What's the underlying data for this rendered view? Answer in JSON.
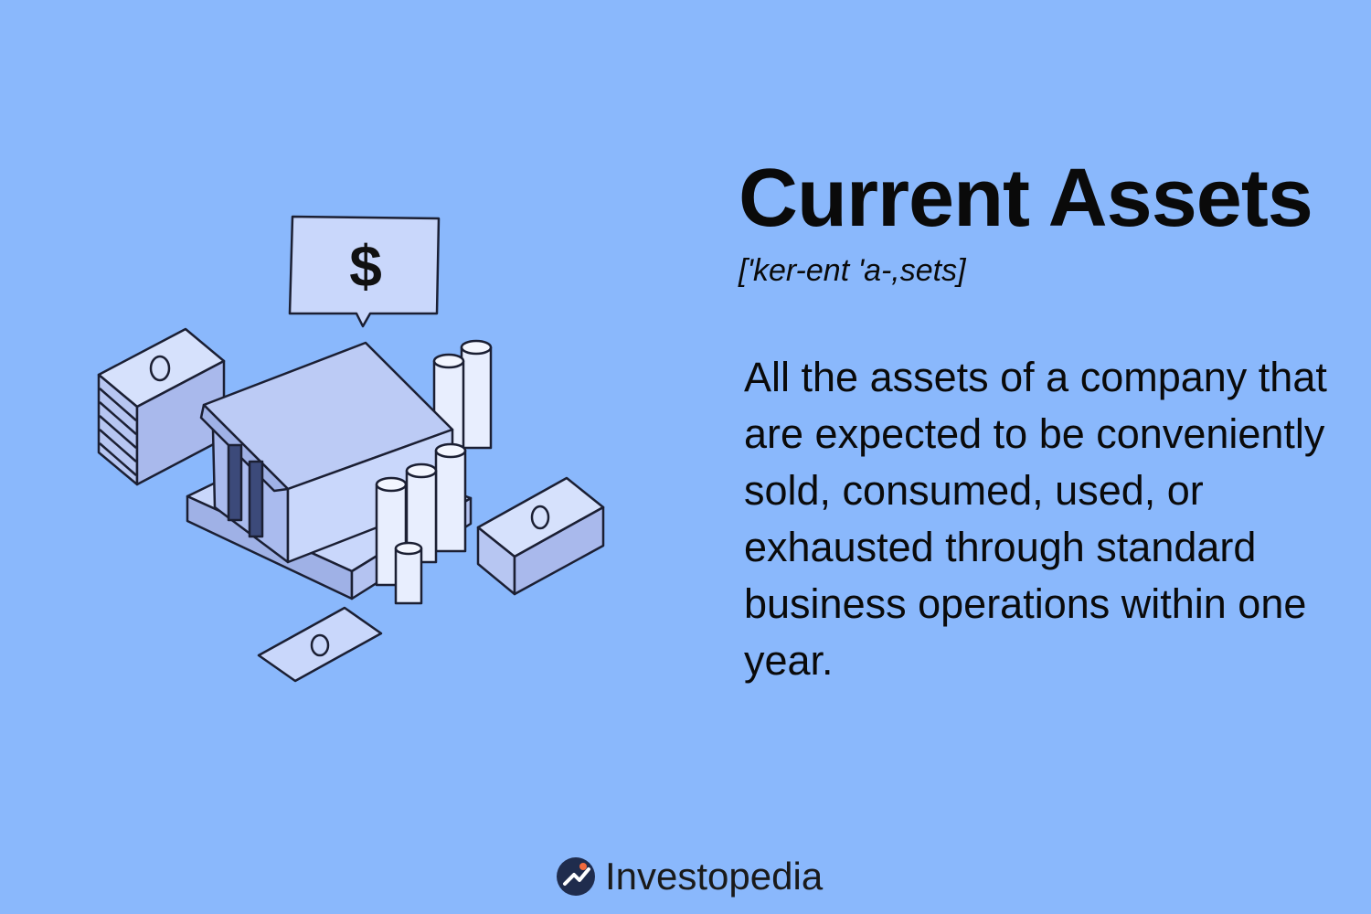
{
  "term": {
    "title": "Current Assets",
    "pronunciation": "['ker-ent 'a-,sets]"
  },
  "definition": {
    "text": "All the assets of a company that are expected to be conveniently sold, consumed, used, or exhausted through standard business operations within one year."
  },
  "illustration": {
    "sign_symbol": "$"
  },
  "brand": {
    "name": "Investopedia",
    "logo_icon": "investopedia-logo-icon"
  },
  "colors": {
    "background": "#8ab8fc",
    "illustration_fill": "#c9d7fb",
    "illustration_shade": "#9fb1e6",
    "illustration_dark": "#3c4a7a",
    "logo_dark": "#1f2c4d",
    "logo_accent": "#f26a3d"
  }
}
